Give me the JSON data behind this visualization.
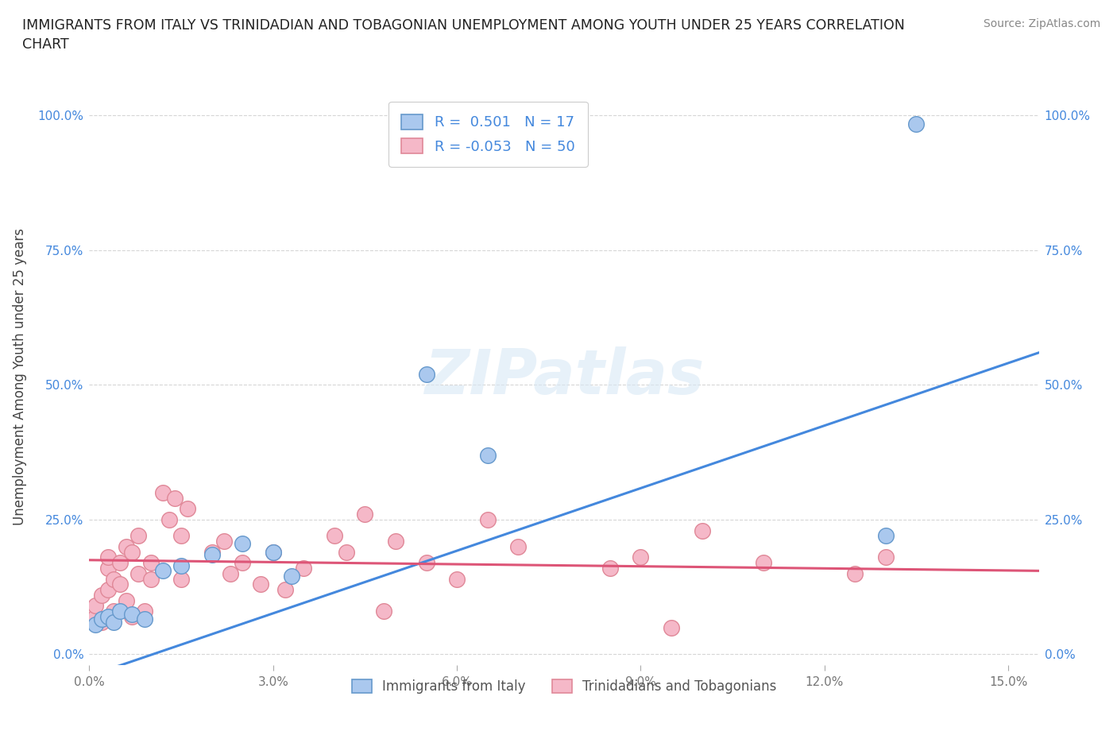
{
  "title": "IMMIGRANTS FROM ITALY VS TRINIDADIAN AND TOBAGONIAN UNEMPLOYMENT AMONG YOUTH UNDER 25 YEARS CORRELATION\nCHART",
  "source": "Source: ZipAtlas.com",
  "ylabel": "Unemployment Among Youth under 25 years",
  "x_ticks": [
    0.0,
    0.03,
    0.06,
    0.09,
    0.12,
    0.15
  ],
  "y_ticks": [
    0.0,
    0.25,
    0.5,
    0.75,
    1.0
  ],
  "y_tick_labels": [
    "0.0%",
    "25.0%",
    "50.0%",
    "75.0%",
    "100.0%"
  ],
  "x_tick_labels": [
    "0.0%",
    "3.0%",
    "6.0%",
    "9.0%",
    "12.0%",
    "15.0%"
  ],
  "xlim": [
    0.0,
    0.155
  ],
  "ylim": [
    -0.02,
    1.05
  ],
  "watermark": "ZIPatlas",
  "italy_color": "#aac8ee",
  "italy_edge_color": "#6699cc",
  "trini_color": "#f5b8c8",
  "trini_edge_color": "#e08898",
  "italy_R": 0.501,
  "italy_N": 17,
  "trini_R": -0.053,
  "trini_N": 50,
  "italy_line_color": "#4488dd",
  "trini_line_color": "#dd5577",
  "tick_color": "#4488dd",
  "italy_scatter_x": [
    0.001,
    0.002,
    0.003,
    0.004,
    0.005,
    0.007,
    0.009,
    0.012,
    0.015,
    0.02,
    0.025,
    0.03,
    0.033,
    0.055,
    0.065,
    0.13,
    0.135
  ],
  "italy_scatter_y": [
    0.055,
    0.065,
    0.07,
    0.06,
    0.08,
    0.075,
    0.065,
    0.155,
    0.165,
    0.185,
    0.205,
    0.19,
    0.145,
    0.52,
    0.37,
    0.22,
    0.985
  ],
  "trini_scatter_x": [
    0.001,
    0.001,
    0.002,
    0.002,
    0.003,
    0.003,
    0.003,
    0.004,
    0.004,
    0.005,
    0.005,
    0.006,
    0.006,
    0.007,
    0.007,
    0.008,
    0.008,
    0.009,
    0.01,
    0.01,
    0.012,
    0.013,
    0.014,
    0.015,
    0.015,
    0.016,
    0.02,
    0.022,
    0.023,
    0.025,
    0.028,
    0.03,
    0.032,
    0.035,
    0.04,
    0.042,
    0.045,
    0.048,
    0.05,
    0.055,
    0.06,
    0.065,
    0.07,
    0.085,
    0.09,
    0.095,
    0.1,
    0.11,
    0.125,
    0.13
  ],
  "trini_scatter_y": [
    0.07,
    0.09,
    0.06,
    0.11,
    0.12,
    0.16,
    0.18,
    0.08,
    0.14,
    0.13,
    0.17,
    0.1,
    0.2,
    0.07,
    0.19,
    0.22,
    0.15,
    0.08,
    0.14,
    0.17,
    0.3,
    0.25,
    0.29,
    0.14,
    0.22,
    0.27,
    0.19,
    0.21,
    0.15,
    0.17,
    0.13,
    0.19,
    0.12,
    0.16,
    0.22,
    0.19,
    0.26,
    0.08,
    0.21,
    0.17,
    0.14,
    0.25,
    0.2,
    0.16,
    0.18,
    0.05,
    0.23,
    0.17,
    0.15,
    0.18
  ],
  "italy_trend_x0": 0.0,
  "italy_trend_y0": -0.04,
  "italy_trend_x1": 0.155,
  "italy_trend_y1": 0.56,
  "trini_trend_x0": 0.0,
  "trini_trend_y0": 0.175,
  "trini_trend_x1": 0.155,
  "trini_trend_y1": 0.155
}
